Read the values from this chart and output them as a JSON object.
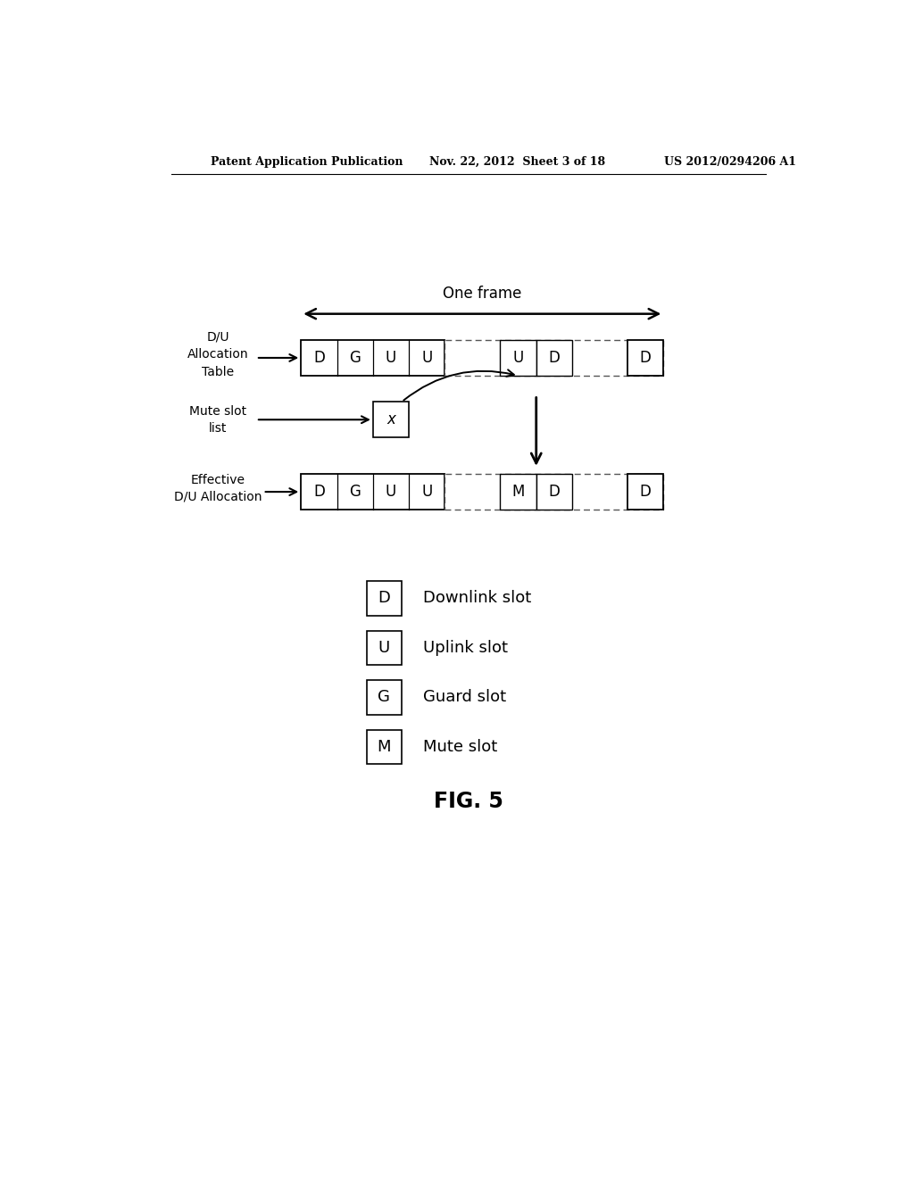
{
  "header_left": "Patent Application Publication",
  "header_mid": "Nov. 22, 2012  Sheet 3 of 18",
  "header_right": "US 2012/0294206 A1",
  "one_frame_label": "One frame",
  "row1_label_lines": [
    "D/U",
    "Allocation",
    "Table"
  ],
  "row2_label_lines": [
    "Mute slot",
    "list"
  ],
  "row3_label_lines": [
    "Effective",
    "D/U Allocation"
  ],
  "row1_slots": [
    "D",
    "G",
    "U",
    "U",
    "",
    "U",
    "D",
    "",
    "D"
  ],
  "row3_slots": [
    "D",
    "G",
    "U",
    "U",
    "",
    "M",
    "D",
    "",
    "D"
  ],
  "mute_box": "x",
  "legend_items": [
    {
      "symbol": "D",
      "label": "Downlink slot"
    },
    {
      "symbol": "U",
      "label": "Uplink slot"
    },
    {
      "symbol": "G",
      "label": "Guard slot"
    },
    {
      "symbol": "M",
      "label": "Mute slot"
    }
  ],
  "fig_label": "FIG. 5",
  "bg_color": "#ffffff",
  "text_color": "#000000"
}
